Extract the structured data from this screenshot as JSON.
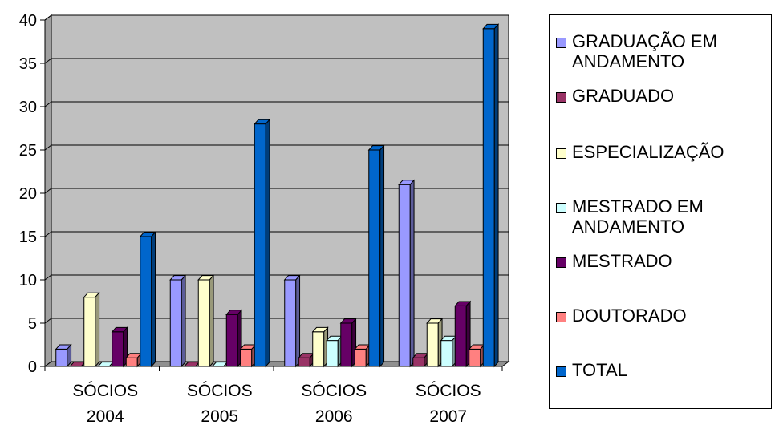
{
  "chart_data": {
    "type": "bar",
    "categories": [
      "SÓCIOS\n2004",
      "SÓCIOS\n2005",
      "SÓCIOS\n2006",
      "SÓCIOS\n2007"
    ],
    "series": [
      {
        "name": "GRADUAÇÃO EM\nANDAMENTO",
        "color": "#9999ff",
        "values": [
          2,
          10,
          10,
          21
        ]
      },
      {
        "name": "GRADUADO",
        "color": "#993366",
        "values": [
          0,
          0,
          1,
          1
        ]
      },
      {
        "name": "ESPECIALIZAÇÃO",
        "color": "#ffffcc",
        "values": [
          8,
          10,
          4,
          5
        ]
      },
      {
        "name": "MESTRADO EM\nANDAMENTO",
        "color": "#ccffff",
        "values": [
          0,
          0,
          3,
          3
        ]
      },
      {
        "name": "MESTRADO",
        "color": "#660066",
        "values": [
          4,
          6,
          5,
          7
        ]
      },
      {
        "name": "DOUTORADO",
        "color": "#ff8080",
        "values": [
          1,
          2,
          2,
          2
        ]
      },
      {
        "name": "TOTAL",
        "color": "#0066cc",
        "values": [
          15,
          28,
          25,
          39
        ]
      }
    ],
    "yticks": [
      "0",
      "5",
      "10",
      "15",
      "20",
      "25",
      "30",
      "35",
      "40"
    ],
    "ylim": [
      0,
      40
    ],
    "grid": true,
    "legend_position": "right",
    "wall_color": "#c0c0c0"
  }
}
